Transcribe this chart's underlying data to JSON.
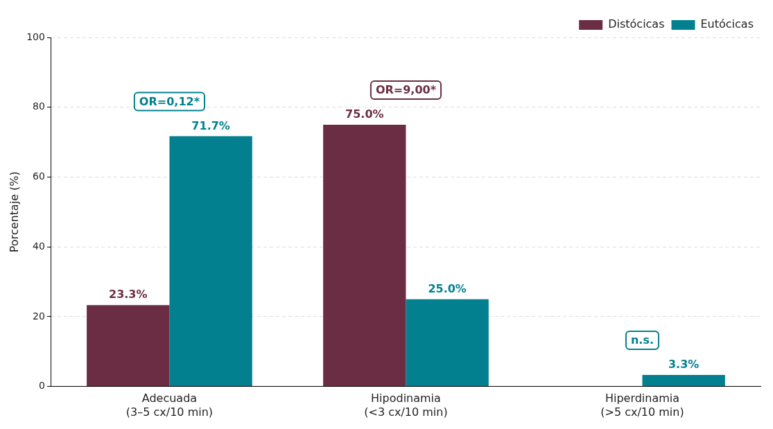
{
  "chart_data": {
    "type": "bar",
    "ylabel": "Porcentaje (%)",
    "categories": [
      "Adecuada\n(3–5 cx/10 min)",
      "Hipodinamia\n(<3 cx/10 min)",
      "Hiperdinamia\n(>5 cx/10 min)"
    ],
    "series": [
      {
        "name": "Distócicas",
        "color": "#6b2d43",
        "values": [
          23.3,
          75.0,
          0
        ],
        "value_labels": [
          "23.3%",
          "75.0%",
          null
        ]
      },
      {
        "name": "Eutócicas",
        "color": "#02808f",
        "values": [
          71.7,
          25.0,
          3.3
        ],
        "value_labels": [
          "71.7%",
          "25.0%",
          "3.3%"
        ]
      }
    ],
    "ylim": [
      0,
      100
    ],
    "yticks": [
      0,
      20,
      40,
      60,
      80,
      100
    ],
    "grid": "y",
    "legend": "top right",
    "annotations": [
      "OR=0,12*",
      "OR=9,00*",
      "n.s."
    ]
  }
}
